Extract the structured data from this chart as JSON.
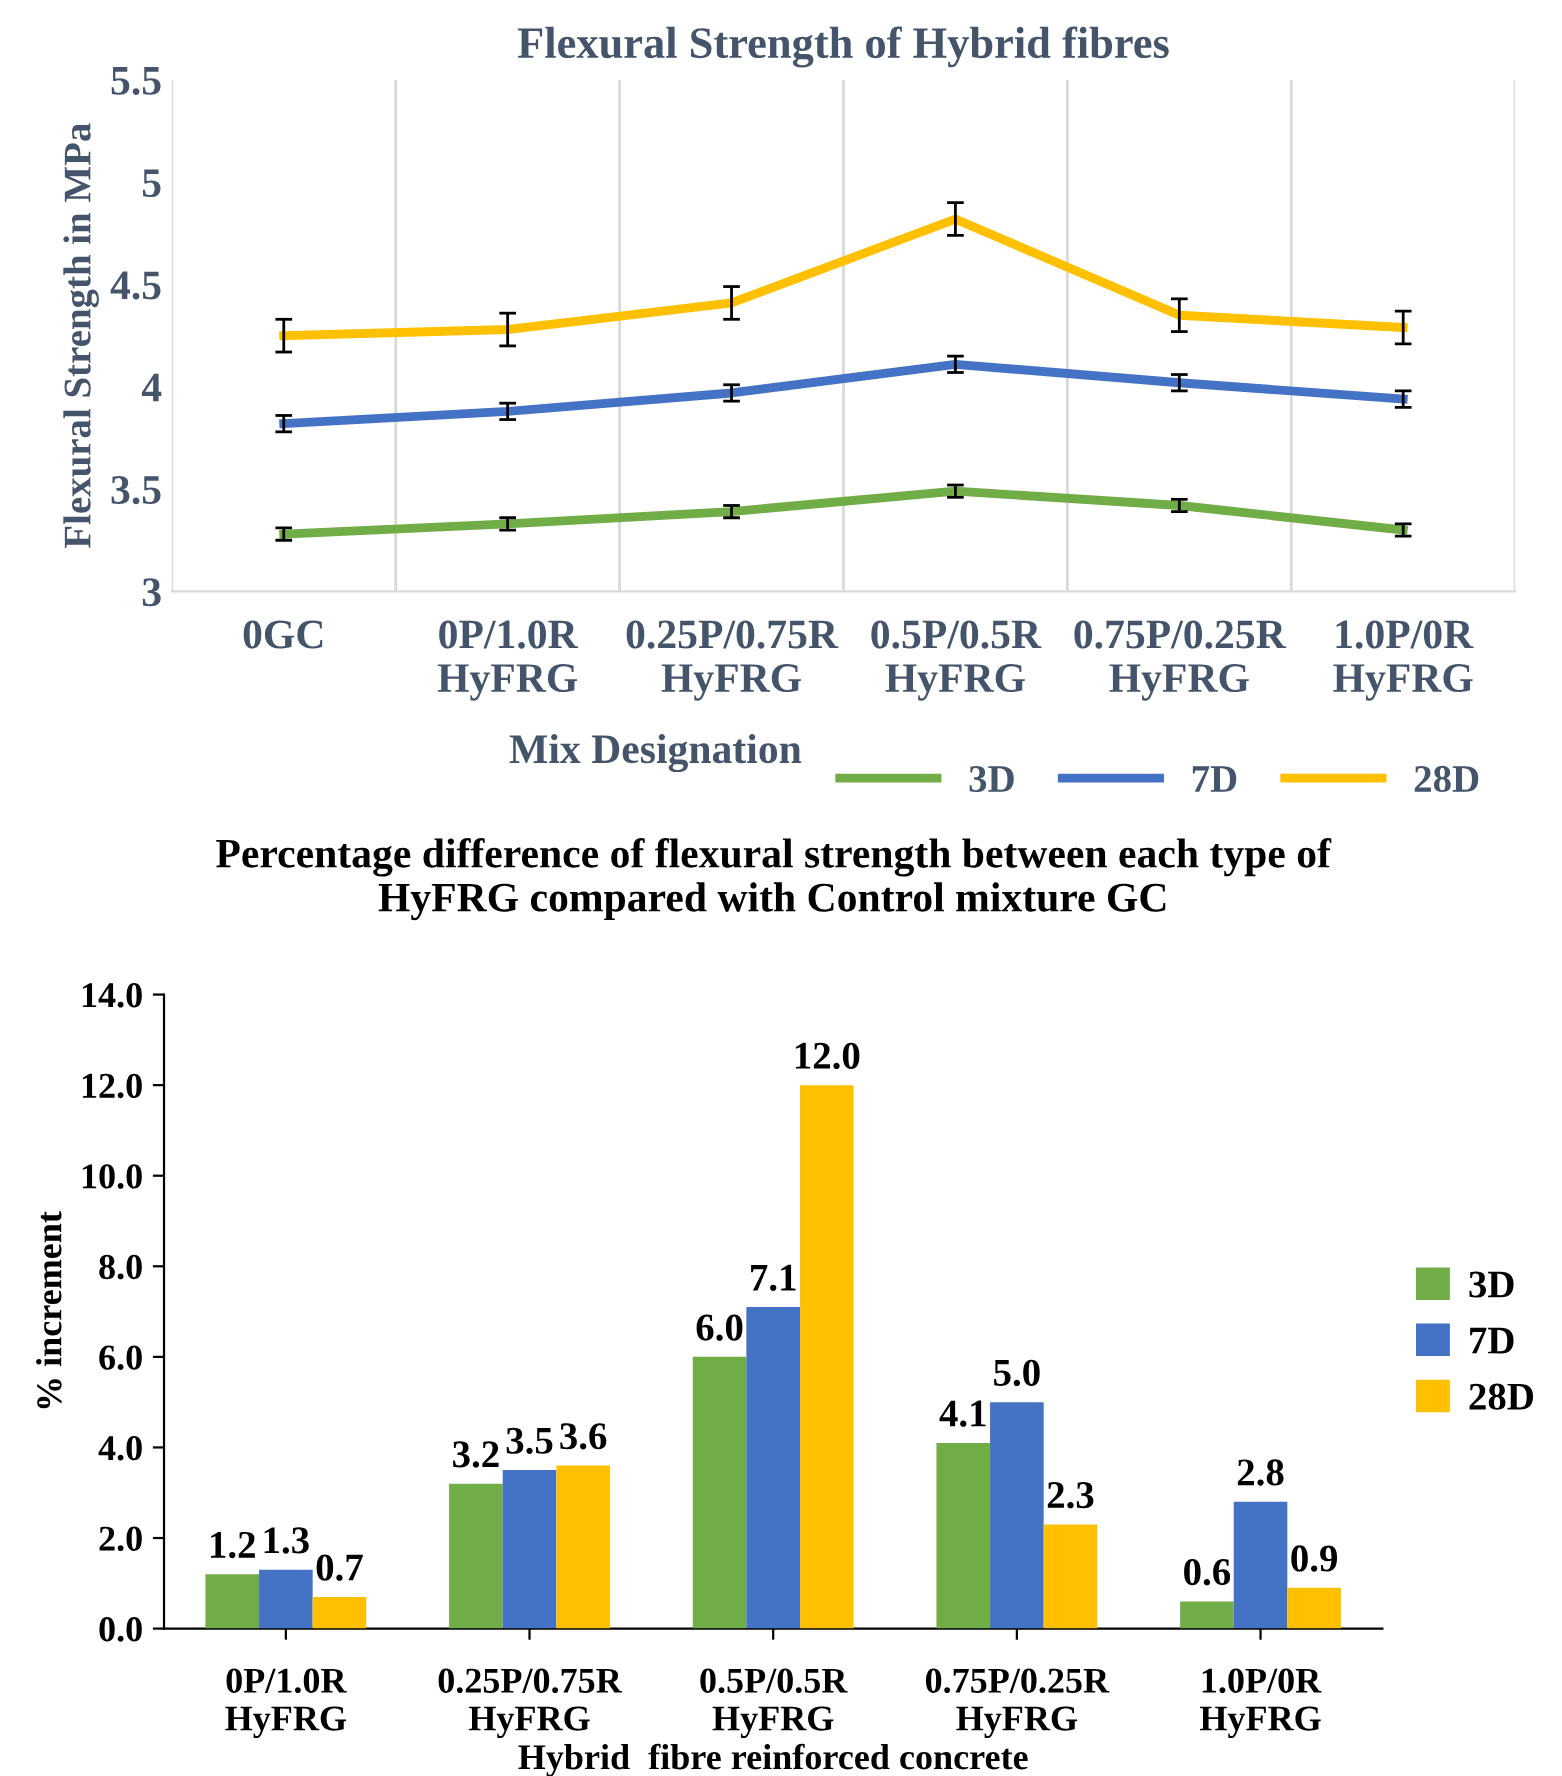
{
  "chart_data": [
    {
      "type": "line",
      "title": "Flexural Strength of Hybrid fibres",
      "xlabel": "Mix Designation",
      "ylabel": "Flexural Strength in MPa",
      "categories": [
        "0GC",
        "0P/1.0R\nHyFRG",
        "0.25P/0.75R\nHyFRG",
        "0.5P/0.5R\nHyFRG",
        "0.75P/0.25R\nHyFRG",
        "1.0P/0R\nHyFRG"
      ],
      "series": [
        {
          "name": "3D",
          "color": "#70ad47",
          "values": [
            3.28,
            3.33,
            3.39,
            3.49,
            3.42,
            3.3
          ],
          "errors": [
            0.03,
            0.03,
            0.03,
            0.03,
            0.03,
            0.03
          ]
        },
        {
          "name": "7D",
          "color": "#4472c4",
          "values": [
            3.82,
            3.88,
            3.97,
            4.11,
            4.02,
            3.94
          ],
          "errors": [
            0.04,
            0.04,
            0.04,
            0.04,
            0.04,
            0.04
          ]
        },
        {
          "name": "28D",
          "color": "#ffc000",
          "values": [
            4.25,
            4.28,
            4.41,
            4.82,
            4.35,
            4.29
          ],
          "errors": [
            0.08,
            0.08,
            0.08,
            0.08,
            0.08,
            0.08
          ]
        }
      ],
      "ylim": [
        3,
        5.5
      ],
      "yticks": [
        3,
        3.5,
        4,
        4.5,
        5,
        5.5
      ],
      "grid": "x",
      "legend": "bottom right",
      "marker": "none",
      "line_style": "solid"
    },
    {
      "type": "bar",
      "title": "Percentage difference of flexural strength between each type of\nHyFRG compared with Control mixture GC",
      "xlabel": "Hybrid  fibre reinforced concrete",
      "ylabel": "% increment",
      "categories": [
        "0P/1.0R\nHyFRG",
        "0.25P/0.75R\nHyFRG",
        "0.5P/0.5R\nHyFRG",
        "0.75P/0.25R\nHyFRG",
        "1.0P/0R\nHyFRG"
      ],
      "series": [
        {
          "name": "3D",
          "color": "#70ad47",
          "values": [
            1.2,
            3.2,
            6.0,
            4.1,
            0.6
          ],
          "value_labels": [
            "1.2",
            "3.2",
            "6.0",
            "4.1",
            "0.6"
          ]
        },
        {
          "name": "7D",
          "color": "#4472c4",
          "values": [
            1.3,
            3.5,
            7.1,
            5.0,
            2.8
          ],
          "value_labels": [
            "1.3",
            "3.5",
            "7.1",
            "5.0",
            "2.8"
          ]
        },
        {
          "name": "28D",
          "color": "#ffc000",
          "values": [
            0.7,
            3.6,
            12.0,
            2.3,
            0.9
          ],
          "value_labels": [
            "0.7",
            "3.6",
            "12.0",
            "2.3",
            "0.9"
          ]
        }
      ],
      "ylim": [
        0,
        14
      ],
      "yticks": [
        {
          "value": 0,
          "label": "0.0"
        },
        {
          "value": 2,
          "label": "2.0"
        },
        {
          "value": 4,
          "label": "4.0"
        },
        {
          "value": 6,
          "label": "6.0"
        },
        {
          "value": 8,
          "label": "8.0"
        },
        {
          "value": 10,
          "label": "10.0"
        },
        {
          "value": 12,
          "label": "12.0"
        },
        {
          "value": 14,
          "label": "14.0"
        }
      ],
      "legend": "right"
    }
  ]
}
